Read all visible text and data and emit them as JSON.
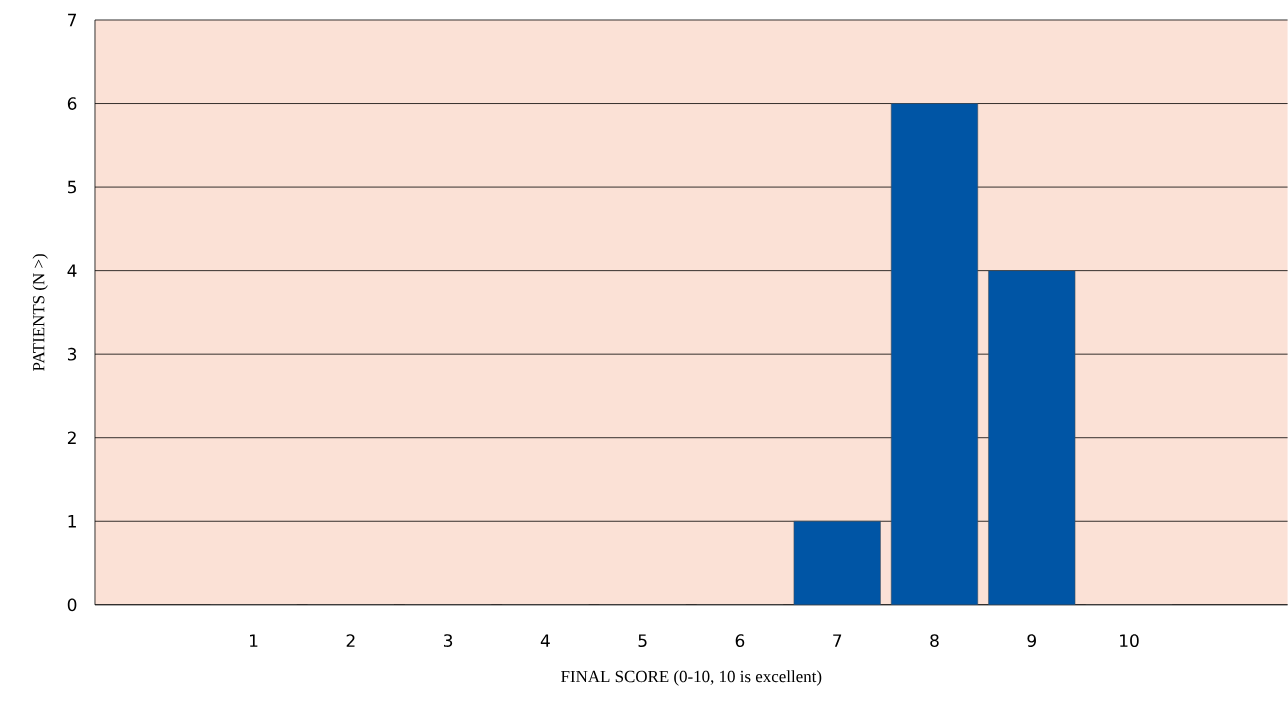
{
  "chart_data": {
    "type": "bar",
    "xlabel": "FINAL SCORE (0-10, 10 is excellent)",
    "ylabel": "PATIENTS (N >)",
    "categories": [
      "1",
      "2",
      "3",
      "4",
      "5",
      "6",
      "7",
      "8",
      "9",
      "10"
    ],
    "values": [
      0,
      0,
      0,
      0,
      0,
      0,
      1,
      6,
      4,
      0
    ],
    "color": "#0055a5",
    "ylim": [
      0,
      7
    ],
    "yticks": [
      0,
      1,
      2,
      3,
      4,
      5,
      6,
      7
    ],
    "grid": "y"
  }
}
